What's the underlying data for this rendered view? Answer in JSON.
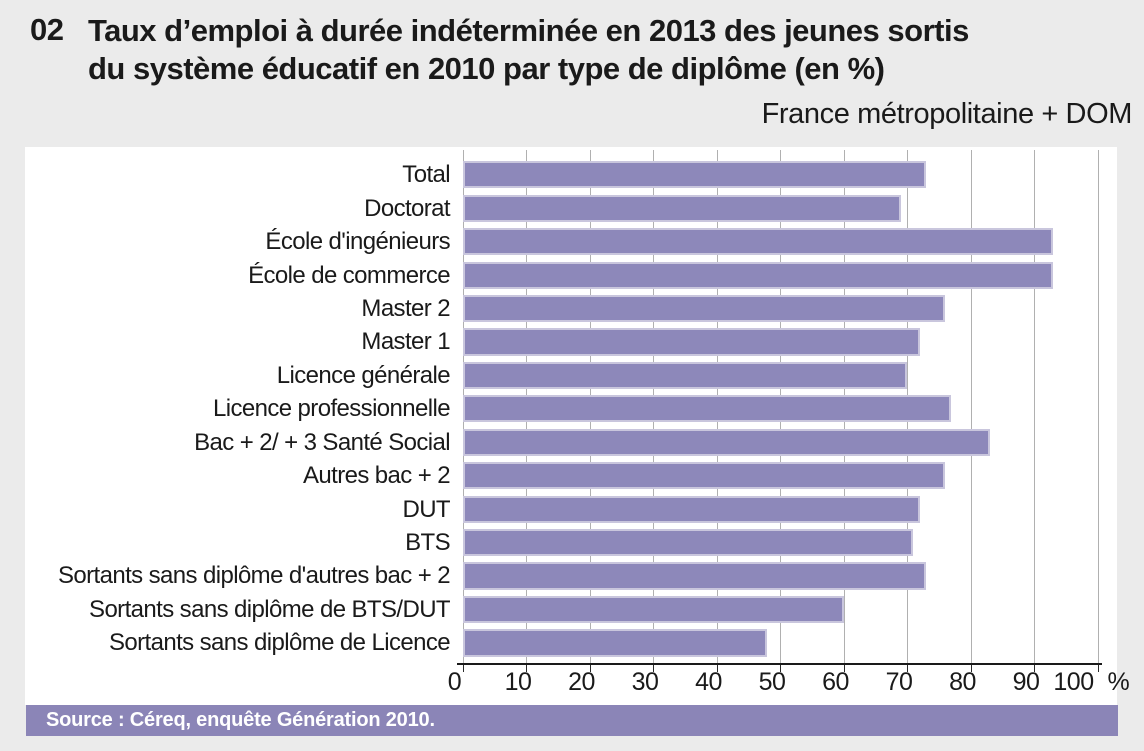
{
  "header": {
    "figure_number": "02",
    "title_line1": "Taux d’emploi à durée indéterminée en 2013 des jeunes sortis",
    "title_line2": "du système éducatif en 2010 par type de diplôme (en %)",
    "subtitle": "France métropolitaine + DOM"
  },
  "chart_data": {
    "type": "bar",
    "orientation": "horizontal",
    "title": "Taux d’emploi à durée indéterminée en 2013 des jeunes sortis du système éducatif en 2010 par type de diplôme (en %)",
    "subtitle": "France métropolitaine + DOM",
    "categories": [
      "Total",
      "Doctorat",
      "École d'ingénieurs",
      "École de commerce",
      "Master 2",
      "Master 1",
      "Licence générale",
      "Licence professionnelle",
      "Bac + 2/ + 3 Santé Social",
      "Autres bac + 2",
      "DUT",
      "BTS",
      "Sortants sans diplôme d'autres bac + 2",
      "Sortants sans diplôme de BTS/DUT",
      "Sortants sans diplôme de Licence"
    ],
    "values": [
      73,
      69,
      93,
      93,
      76,
      72,
      70,
      77,
      83,
      76,
      72,
      71,
      73,
      60,
      48
    ],
    "xlim": [
      0,
      100
    ],
    "xticks": [
      0,
      10,
      20,
      30,
      40,
      50,
      60,
      70,
      80,
      90,
      100
    ],
    "unit_label": "%",
    "grid": true,
    "legend": "none",
    "bar_color": "#8d88ba",
    "bar_border_color": "#c9c6dd"
  },
  "source": {
    "text": "Source : Céreq, enquête Génération 2010."
  },
  "colors": {
    "page_bg": "#ebebeb",
    "panel_bg": "#ffffff",
    "accent_purple": "#8d88ba",
    "source_bg": "#8b85b7",
    "gridline": "#b0b0b0",
    "text": "#1a1a1a"
  }
}
